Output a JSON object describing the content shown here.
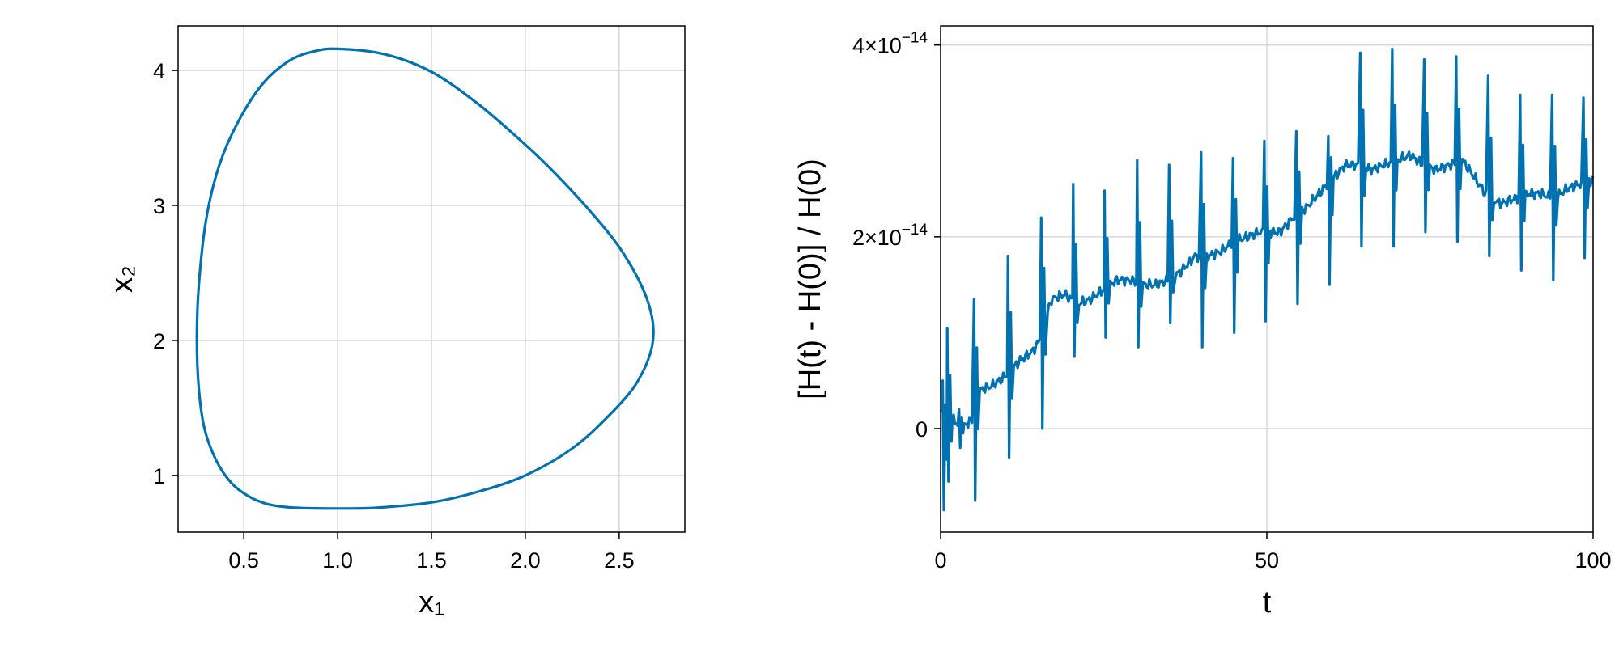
{
  "chart_data": [
    {
      "type": "line",
      "xlabel": "x₁",
      "ylabel": "x₂",
      "xlim": [
        0.15,
        2.85
      ],
      "ylim": [
        0.58,
        4.33
      ],
      "xticks": [
        0.5,
        1.0,
        1.5,
        2.0,
        2.5
      ],
      "xtick_labels": [
        "0.5",
        "1.0",
        "1.5",
        "2.0",
        "2.5"
      ],
      "yticks": [
        1,
        2,
        3,
        4
      ],
      "ytick_labels": [
        "1",
        "2",
        "3",
        "4"
      ],
      "grid": true,
      "color": "#0072b2",
      "series": [
        {
          "x": [
            1.0,
            0.87,
            0.74,
            0.6,
            0.47,
            0.37,
            0.3,
            0.26,
            0.25,
            0.26,
            0.29,
            0.35,
            0.43,
            0.52,
            0.62,
            0.73,
            0.85,
            1.0,
            1.2,
            1.5,
            1.75,
            2.0,
            2.25,
            2.45,
            2.6,
            2.68,
            2.65,
            2.52,
            2.35,
            2.15,
            2.0,
            1.75,
            1.5,
            1.25,
            1.0
          ],
          "y": [
            4.16,
            4.14,
            4.07,
            3.9,
            3.62,
            3.3,
            2.9,
            2.4,
            2.0,
            1.65,
            1.35,
            1.12,
            0.95,
            0.85,
            0.79,
            0.765,
            0.757,
            0.755,
            0.76,
            0.8,
            0.88,
            1.0,
            1.2,
            1.45,
            1.7,
            2.0,
            2.3,
            2.65,
            2.95,
            3.25,
            3.45,
            3.75,
            3.99,
            4.12,
            4.16
          ]
        }
      ]
    },
    {
      "type": "line",
      "xlabel": "t",
      "ylabel": "[H(t) - H(0)] / H(0)",
      "xlim": [
        0,
        100
      ],
      "ylim": [
        -1.08e-14,
        4.2e-14
      ],
      "xticks": [
        0,
        50,
        100
      ],
      "xtick_labels": [
        "0",
        "50",
        "100"
      ],
      "yticks": [
        0,
        2e-14,
        4e-14
      ],
      "ytick_labels": [
        {
          "base": "0",
          "exp": ""
        },
        {
          "base": "2×10",
          "exp": "−14"
        },
        {
          "base": "4×10",
          "exp": "−14"
        }
      ],
      "grid": true,
      "color": "#0072b2",
      "baseline_x": [
        0,
        1,
        2,
        3,
        5,
        6,
        8,
        10,
        12,
        14,
        15,
        17,
        19,
        21,
        23,
        25,
        27,
        29,
        31,
        33,
        35,
        37,
        39,
        41,
        43,
        45,
        47,
        49,
        50,
        52,
        54,
        56,
        58,
        60,
        62,
        64,
        66,
        68,
        70,
        72,
        74,
        76,
        78,
        80,
        82,
        84,
        86,
        88,
        90,
        92,
        94,
        96,
        98,
        100
      ],
      "baseline_y": [
        2e-15,
        0.0,
        1e-15,
        0.0,
        1e-15,
        4e-15,
        4.5e-15,
        5.5e-15,
        7e-15,
        8e-15,
        9e-15,
        1.35e-14,
        1.4e-14,
        1.3e-14,
        1.35e-14,
        1.45e-14,
        1.55e-14,
        1.55e-14,
        1.5e-14,
        1.5e-14,
        1.55e-14,
        1.65e-14,
        1.8e-14,
        1.8e-14,
        1.85e-14,
        1.95e-14,
        2e-14,
        2.05e-14,
        2.05e-14,
        2.05e-14,
        2.2e-14,
        2.3e-14,
        2.45e-14,
        2.6e-14,
        2.75e-14,
        2.75e-14,
        2.7e-14,
        2.75e-14,
        2.8e-14,
        2.85e-14,
        2.75e-14,
        2.7e-14,
        2.75e-14,
        2.8e-14,
        2.6e-14,
        2.4e-14,
        2.35e-14,
        2.4e-14,
        2.45e-14,
        2.45e-14,
        2.4e-14,
        2.5e-14,
        2.55e-14,
        2.6e-14
      ],
      "spike_t": [
        0.5,
        1.2,
        3.0,
        5.3,
        10.5,
        15.6,
        20.5,
        25.3,
        30.3,
        35.2,
        40.1,
        45.0,
        49.8,
        54.7,
        59.6,
        64.5,
        69.4,
        74.3,
        79.2,
        84.1,
        89.0,
        93.9,
        98.7
      ],
      "spike_max": [
        5e-15,
        1.05e-14,
        2e-15,
        1.35e-14,
        1.8e-14,
        2.2e-14,
        2.55e-14,
        2.48e-14,
        2.8e-14,
        2.75e-14,
        2.88e-14,
        2.82e-14,
        3e-14,
        3.1e-14,
        3.05e-14,
        3.92e-14,
        3.96e-14,
        3.85e-14,
        3.88e-14,
        3.68e-14,
        3.48e-14,
        3.48e-14,
        3.45e-14
      ],
      "spike_min": [
        -8.5e-15,
        -5.5e-15,
        -2e-15,
        -7.5e-15,
        -3e-15,
        0.0,
        7.5e-15,
        9.5e-15,
        8.5e-15,
        1.1e-14,
        8.5e-15,
        1e-14,
        1.12e-14,
        1.3e-14,
        1.5e-14,
        1.9e-14,
        1.9e-14,
        2.05e-14,
        1.95e-14,
        1.8e-14,
        1.65e-14,
        1.55e-14,
        1.78e-14
      ]
    }
  ]
}
